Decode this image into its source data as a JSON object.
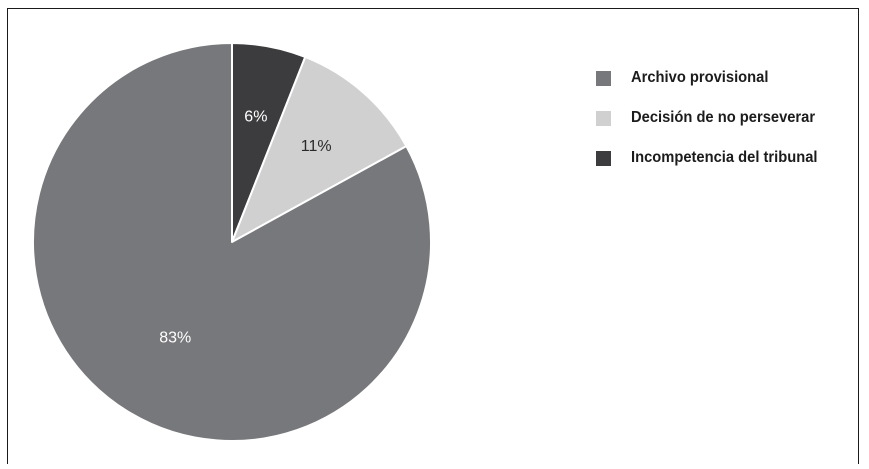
{
  "chart_data": {
    "type": "pie",
    "slices": [
      {
        "label": "Incompetencia del tribunal",
        "value": 6,
        "value_label": "6%",
        "color": "#3c3c3e",
        "text_color": "#ffffff"
      },
      {
        "label": "Decisión de no perseverar",
        "value": 11,
        "value_label": "11%",
        "color": "#d0d0d1",
        "text_color": "#2a2a2a"
      },
      {
        "label": "Archivo provisional",
        "value": 83,
        "value_label": "83%",
        "color": "#77787b",
        "text_color": "#ffffff"
      }
    ],
    "start_angle_deg": 0,
    "direction": "clockwise",
    "legend_position": "top-right",
    "legend": [
      {
        "label": "Archivo provisional",
        "color": "#77787b"
      },
      {
        "label": "Decisión de no perseverar",
        "color": "#d0d0d1"
      },
      {
        "label": "Incompetencia del tribunal",
        "color": "#3c3c3e"
      }
    ]
  }
}
